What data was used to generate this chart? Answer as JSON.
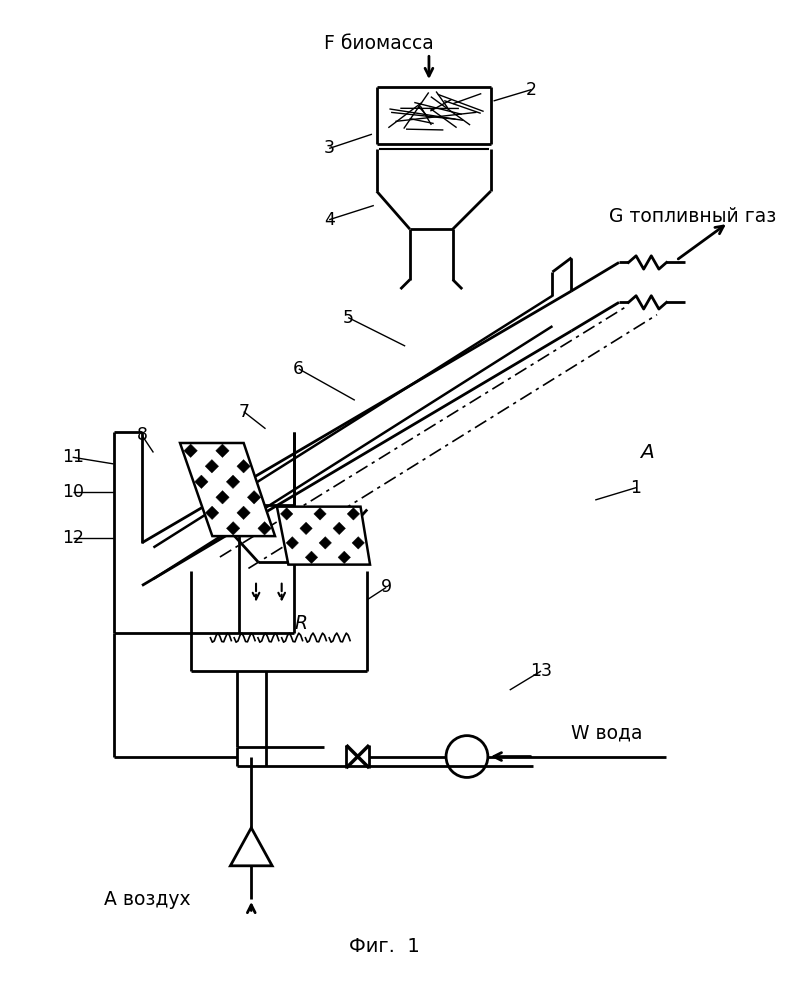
{
  "title": "Фиг.  1",
  "bg_color": "#ffffff",
  "line_color": "#000000",
  "labels": {
    "F": "F биомасса",
    "G": "G топливный газ",
    "A_label": "A",
    "A_vozdukh": "A воздух",
    "W": "W вода",
    "R": "R"
  },
  "numbers": [
    "1",
    "2",
    "3",
    "4",
    "5",
    "6",
    "7",
    "8",
    "9",
    "10",
    "11",
    "12",
    "13"
  ]
}
